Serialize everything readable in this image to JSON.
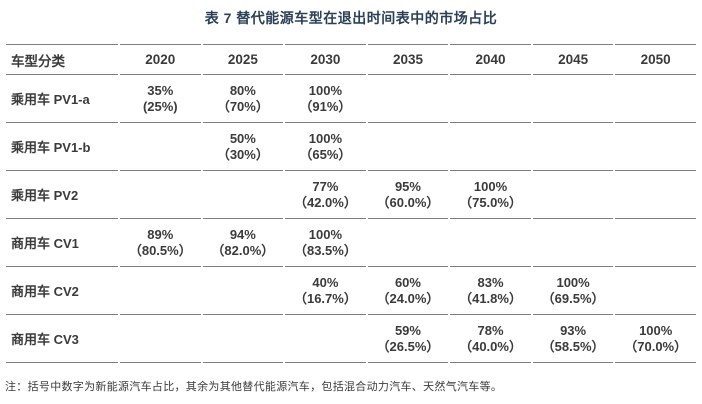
{
  "title": "表 7 替代能源车型在退出时间表中的市场占比",
  "colors": {
    "title": "#2b4157",
    "text": "#3b3b3b",
    "line": "#7f7f7f",
    "bg": "#ffffff"
  },
  "table": {
    "columns": [
      "车型分类",
      "2020",
      "2025",
      "2030",
      "2035",
      "2040",
      "2045",
      "2050"
    ],
    "rows": [
      {
        "label": "乘用车 PV1-a",
        "cells": [
          [
            "35%",
            "(25%)"
          ],
          [
            "80%",
            "（70%）"
          ],
          [
            "100%",
            "（91%）"
          ],
          [],
          [],
          [],
          []
        ]
      },
      {
        "label": "乘用车 PV1-b",
        "cells": [
          [],
          [
            "50%",
            "（30%）"
          ],
          [
            "100%",
            "（65%）"
          ],
          [],
          [],
          [],
          []
        ]
      },
      {
        "label": "乘用车 PV2",
        "cells": [
          [],
          [],
          [
            "77%",
            "（42.0%）"
          ],
          [
            "95%",
            "（60.0%）"
          ],
          [
            "100%",
            "（75.0%）"
          ],
          [],
          []
        ]
      },
      {
        "label": "商用车 CV1",
        "cells": [
          [
            "89%",
            "（80.5%）"
          ],
          [
            "94%",
            "（82.0%）"
          ],
          [
            "100%",
            "（83.5%）"
          ],
          [],
          [],
          [],
          []
        ]
      },
      {
        "label": "商用车 CV2",
        "cells": [
          [],
          [],
          [
            "40%",
            "（16.7%）"
          ],
          [
            "60%",
            "（24.0%）"
          ],
          [
            "83%",
            "（41.8%）"
          ],
          [
            "100%",
            "（69.5%）"
          ],
          []
        ]
      },
      {
        "label": "商用车 CV3",
        "cells": [
          [],
          [],
          [],
          [
            "59%",
            "（26.5%）"
          ],
          [
            "78%",
            "（40.0%）"
          ],
          [
            "93%",
            "（58.5%）"
          ],
          [
            "100%",
            "（70.0%）"
          ]
        ]
      }
    ]
  },
  "note": "注：括号中数字为新能源汽车占比，其余为其他替代能源汽车，包括混合动力汽车、天然气汽车等。"
}
